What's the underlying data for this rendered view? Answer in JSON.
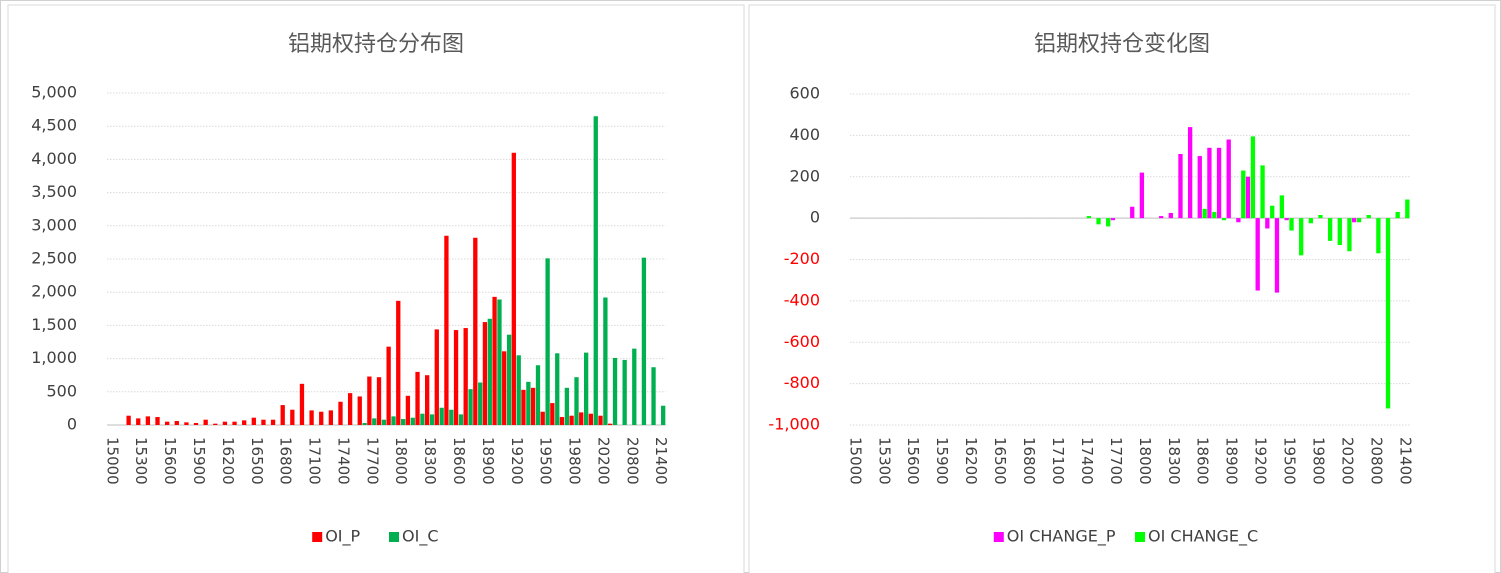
{
  "chart_data": [
    {
      "type": "bar",
      "title": "铝期权持仓分布图",
      "categories": [
        15000,
        null,
        null,
        15300,
        null,
        null,
        15600,
        null,
        null,
        15900,
        null,
        null,
        16200,
        null,
        null,
        16500,
        null,
        null,
        16800,
        null,
        null,
        17100,
        null,
        null,
        17400,
        null,
        null,
        17700,
        null,
        null,
        18000,
        null,
        null,
        18300,
        null,
        null,
        18600,
        null,
        null,
        18900,
        null,
        null,
        19200,
        null,
        null,
        19500,
        null,
        null,
        19800,
        null,
        null,
        20200,
        null,
        null,
        20800,
        null,
        null,
        21400
      ],
      "series": [
        {
          "name": "OI_P",
          "color": "#ff0000",
          "values": [
            0,
            0,
            140,
            100,
            130,
            120,
            50,
            60,
            40,
            30,
            80,
            20,
            50,
            50,
            70,
            110,
            80,
            80,
            300,
            230,
            620,
            220,
            200,
            220,
            350,
            480,
            430,
            730,
            720,
            1180,
            1870,
            440,
            800,
            750,
            1440,
            2850,
            1430,
            1460,
            2820,
            1550,
            1930,
            1110,
            4100,
            530,
            560,
            200,
            330,
            120,
            140,
            190,
            170,
            140,
            20,
            0,
            0,
            0,
            0,
            0
          ]
        },
        {
          "name": "OI_C",
          "color": "#00b050",
          "values": [
            0,
            0,
            0,
            0,
            0,
            0,
            0,
            0,
            0,
            0,
            0,
            0,
            0,
            0,
            0,
            0,
            0,
            0,
            0,
            0,
            0,
            0,
            0,
            0,
            0,
            0,
            30,
            100,
            80,
            130,
            90,
            110,
            170,
            160,
            260,
            230,
            160,
            540,
            640,
            1600,
            1890,
            1360,
            1050,
            650,
            900,
            2510,
            1080,
            560,
            720,
            1090,
            4650,
            1920,
            1010,
            980,
            1150,
            2520,
            870,
            290
          ]
        }
      ],
      "ylim": [
        0,
        5000
      ],
      "yticks": [
        0,
        500,
        {
          "value": 1000,
          "label": "1,000"
        },
        {
          "value": 1500,
          "label": "1,500"
        },
        {
          "value": 2000,
          "label": "2,000"
        },
        {
          "value": 2500,
          "label": "2,500"
        },
        {
          "value": 3000,
          "label": "3,000"
        },
        {
          "value": 3500,
          "label": "3,500"
        },
        {
          "value": 4000,
          "label": "4,000"
        },
        {
          "value": 4500,
          "label": "4,500"
        },
        {
          "value": 5000,
          "label": "5,000"
        }
      ],
      "grid": true,
      "legend": "bottom"
    },
    {
      "type": "bar",
      "title": "铝期权持仓变化图",
      "categories": [
        15000,
        null,
        null,
        15300,
        null,
        null,
        15600,
        null,
        null,
        15900,
        null,
        null,
        16200,
        null,
        null,
        16500,
        null,
        null,
        16800,
        null,
        null,
        17100,
        null,
        null,
        17400,
        null,
        null,
        17700,
        null,
        null,
        18000,
        null,
        null,
        18300,
        null,
        null,
        18600,
        null,
        null,
        18900,
        null,
        null,
        19200,
        null,
        null,
        19500,
        null,
        null,
        19800,
        null,
        null,
        20200,
        null,
        null,
        20800,
        null,
        null,
        21400
      ],
      "series": [
        {
          "name": "OI CHANGE_P",
          "color": "#ff00ff",
          "values": [
            0,
            0,
            0,
            0,
            0,
            0,
            0,
            0,
            0,
            0,
            0,
            0,
            0,
            0,
            0,
            0,
            0,
            0,
            0,
            0,
            0,
            0,
            0,
            0,
            0,
            0,
            0,
            -10,
            0,
            55,
            220,
            0,
            10,
            25,
            310,
            440,
            300,
            340,
            340,
            380,
            -20,
            200,
            -350,
            -50,
            -360,
            -10,
            0,
            0,
            0,
            0,
            0,
            0,
            -20,
            0,
            0,
            0,
            0,
            0
          ]
        },
        {
          "name": "OI CHANGE_C",
          "color": "#00ff00",
          "values": [
            0,
            0,
            0,
            0,
            0,
            0,
            0,
            0,
            0,
            0,
            0,
            0,
            0,
            0,
            0,
            0,
            0,
            0,
            0,
            0,
            0,
            0,
            0,
            0,
            10,
            -30,
            -40,
            0,
            0,
            0,
            0,
            0,
            0,
            0,
            0,
            0,
            45,
            30,
            -10,
            0,
            230,
            395,
            255,
            60,
            110,
            -60,
            -180,
            -25,
            15,
            -110,
            -130,
            -160,
            -20,
            15,
            -170,
            -920,
            30,
            90
          ]
        }
      ],
      "ylim": [
        -1000,
        600
      ],
      "yticks": [
        {
          "value": -1000,
          "label": "-1,000"
        },
        -800,
        -600,
        -400,
        -200,
        0,
        200,
        400,
        600
      ],
      "negative_tick_color": "#ff0000",
      "grid": true,
      "legend": "bottom"
    }
  ]
}
